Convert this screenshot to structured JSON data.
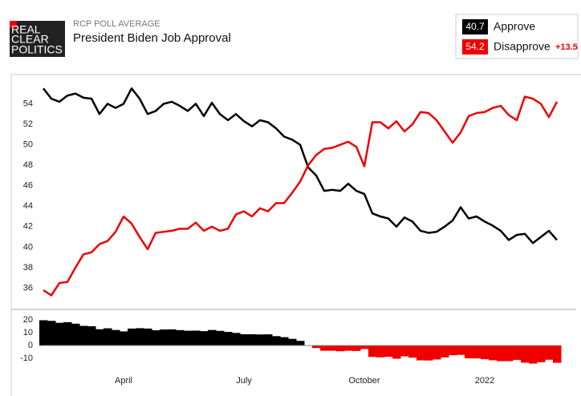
{
  "header": {
    "logo": [
      "REAL",
      "CLEAR",
      "POLITICS"
    ],
    "kicker": "RCP POLL AVERAGE",
    "title": "President Biden Job Approval"
  },
  "chart_data": [
    {
      "type": "line",
      "categories": [
        null,
        null,
        null,
        null,
        null,
        null,
        null,
        null,
        null,
        null,
        "April",
        null,
        null,
        null,
        null,
        null,
        null,
        null,
        null,
        null,
        null,
        null,
        null,
        null,
        null,
        "July",
        null,
        null,
        null,
        null,
        null,
        null,
        null,
        null,
        null,
        null,
        null,
        null,
        null,
        null,
        "October",
        null,
        null,
        null,
        null,
        null,
        null,
        null,
        null,
        null,
        null,
        null,
        null,
        null,
        null,
        "2022",
        null,
        null,
        null,
        null,
        null,
        null,
        null,
        null,
        null
      ],
      "ylim": [
        34,
        56.7
      ],
      "yticks": [
        36,
        38,
        40,
        42,
        44,
        46,
        48,
        50,
        52,
        54
      ],
      "grid": false,
      "spread": {
        "value": 13.5,
        "label": "+13.5"
      },
      "series": [
        {
          "name": "Approve",
          "color": "#000000",
          "latest": 40.7,
          "values": [
            55.5,
            54.5,
            54.2,
            54.8,
            55.0,
            54.6,
            54.5,
            53.0,
            54.0,
            53.6,
            54.0,
            55.5,
            54.5,
            53.0,
            53.3,
            54.0,
            54.2,
            53.8,
            53.3,
            54.0,
            52.8,
            54.1,
            53.0,
            52.4,
            53.0,
            52.3,
            51.8,
            52.4,
            52.2,
            51.6,
            50.8,
            50.5,
            50.0,
            47.8,
            47.0,
            45.5,
            45.6,
            45.5,
            46.2,
            45.5,
            45.2,
            43.3,
            43.0,
            42.8,
            42.0,
            42.9,
            42.5,
            41.6,
            41.4,
            41.5,
            42.0,
            42.6,
            43.9,
            42.8,
            43.0,
            42.5,
            42.1,
            41.6,
            40.7,
            41.2,
            41.3,
            40.4,
            41.0,
            41.6,
            40.7
          ]
        },
        {
          "name": "Disapprove",
          "color": "#ee0000",
          "latest": 54.2,
          "values": [
            35.8,
            35.3,
            36.5,
            36.6,
            38.0,
            39.3,
            39.5,
            40.3,
            40.6,
            41.5,
            43.0,
            42.3,
            41.0,
            39.8,
            41.4,
            41.5,
            41.6,
            41.8,
            41.8,
            42.4,
            41.6,
            42.0,
            41.6,
            41.8,
            43.2,
            43.5,
            43.0,
            43.8,
            43.5,
            44.3,
            44.3,
            45.3,
            46.4,
            48.0,
            49.0,
            49.6,
            49.7,
            50.0,
            50.3,
            49.8,
            47.9,
            52.2,
            52.2,
            51.6,
            52.3,
            51.3,
            52.0,
            53.2,
            53.1,
            52.4,
            51.3,
            50.2,
            51.2,
            52.8,
            53.1,
            53.2,
            53.6,
            53.8,
            52.9,
            52.4,
            54.7,
            54.5,
            54.0,
            52.7,
            54.2
          ]
        }
      ]
    },
    {
      "type": "spread",
      "ylim": [
        -15,
        25
      ],
      "yticks": [
        -10,
        0,
        10,
        20
      ],
      "pos_color": "#000000",
      "neg_color": "#ee0000",
      "values": [
        19.7,
        19.2,
        17.7,
        18.2,
        17.0,
        15.3,
        15.0,
        12.7,
        13.4,
        12.1,
        11.0,
        13.2,
        13.5,
        13.2,
        11.9,
        12.5,
        12.6,
        12.0,
        11.5,
        11.6,
        11.2,
        12.1,
        11.4,
        10.6,
        9.8,
        8.8,
        8.8,
        8.6,
        8.7,
        7.3,
        6.5,
        5.2,
        3.6,
        -0.2,
        -2.0,
        -4.1,
        -4.1,
        -4.5,
        -4.1,
        -4.3,
        -2.7,
        -8.9,
        -9.2,
        -8.8,
        -10.3,
        -8.4,
        -9.5,
        -11.6,
        -11.7,
        -10.9,
        -9.3,
        -7.6,
        -7.3,
        -10.0,
        -10.1,
        -10.7,
        -11.5,
        -12.2,
        -12.2,
        -11.2,
        -13.4,
        -14.1,
        -13.0,
        -11.1,
        -13.5
      ]
    }
  ]
}
